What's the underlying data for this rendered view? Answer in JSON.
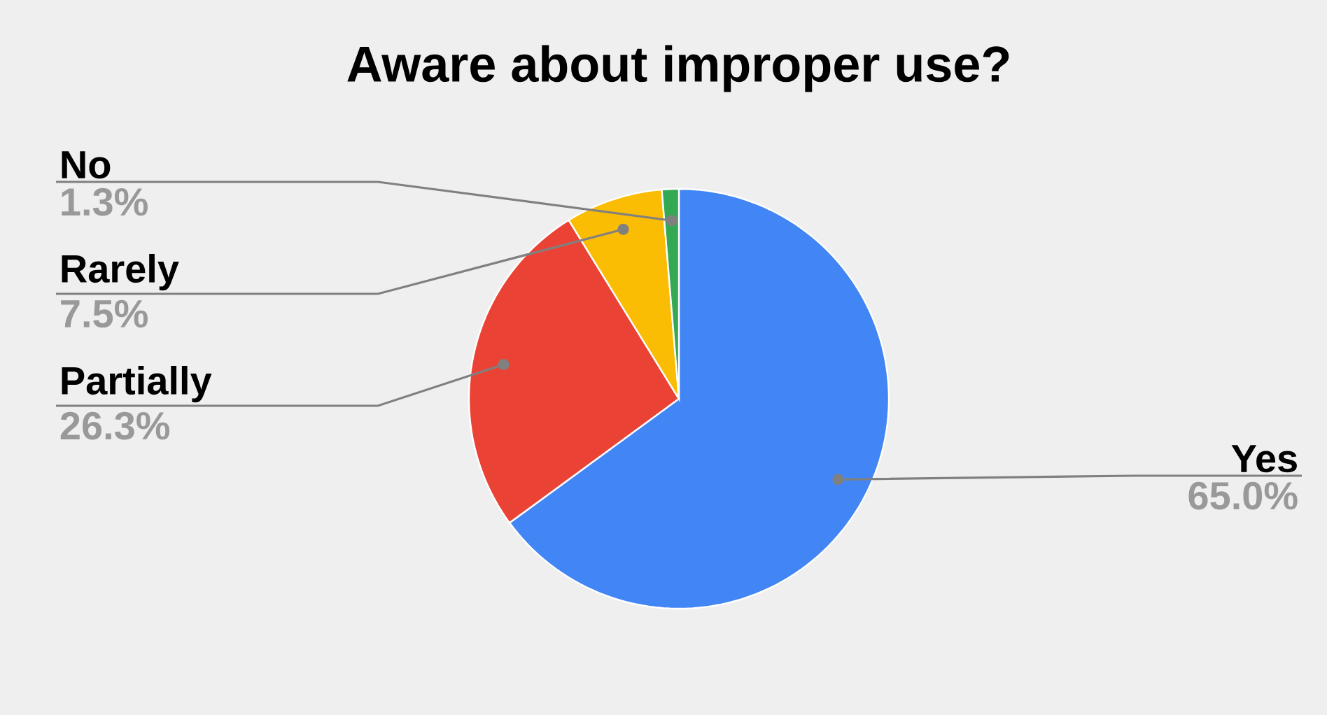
{
  "chart_data": {
    "type": "pie",
    "title": "Aware about improper use?",
    "categories": [
      "Yes",
      "Partially",
      "Rarely",
      "No"
    ],
    "values": [
      65.0,
      26.3,
      7.5,
      1.3
    ],
    "value_labels": [
      "65.0%",
      "26.3%",
      "7.5%",
      "1.3%"
    ],
    "colors": [
      "#4285f4",
      "#ea4335",
      "#fbbc04",
      "#34a853"
    ]
  }
}
